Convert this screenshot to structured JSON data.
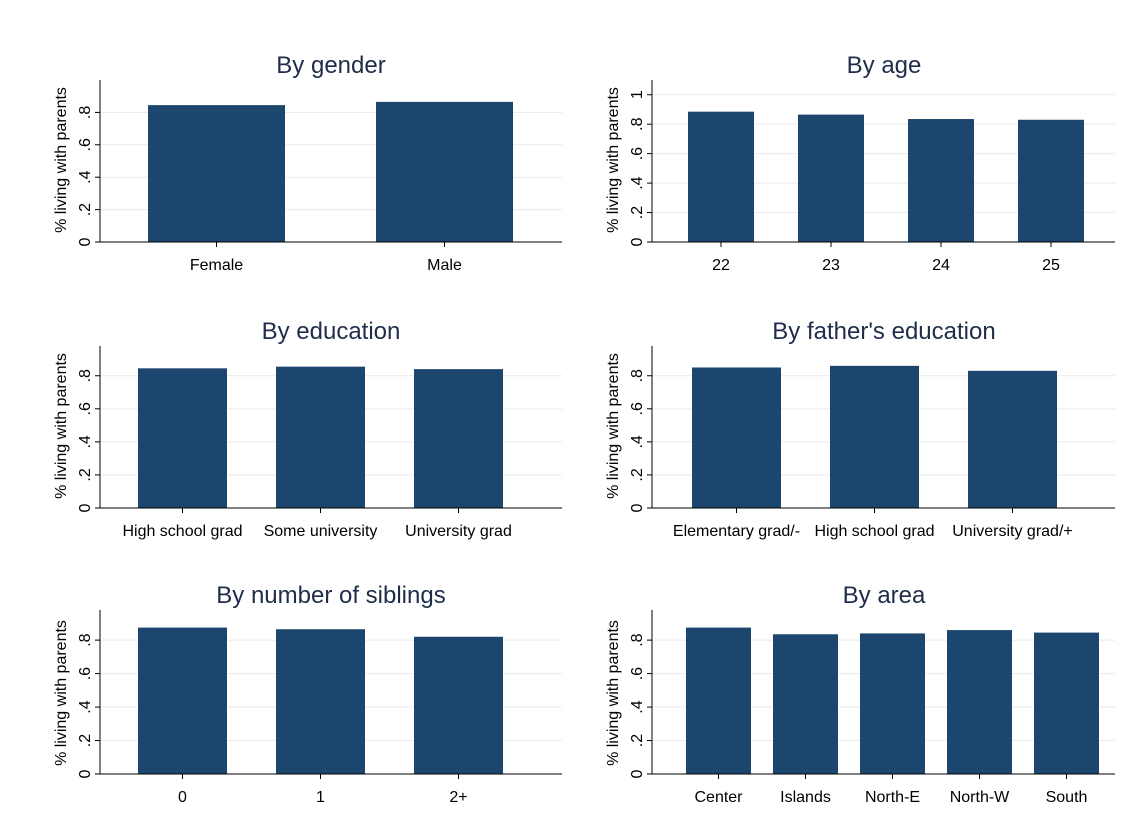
{
  "colors": {
    "bar": "#1c466d",
    "grid": "#eaeaea",
    "axis": "#000000",
    "title": "#1f2d4a"
  },
  "chart_data": [
    {
      "type": "bar",
      "title": "By gender",
      "ylabel": "% living with parents",
      "categories": [
        "Female",
        "Male"
      ],
      "values": [
        0.845,
        0.865
      ],
      "yticks": [
        0,
        0.2,
        0.4,
        0.6,
        0.8
      ],
      "ytick_labels": [
        "0",
        ".2",
        ".4",
        ".6",
        ".8"
      ],
      "ylim": [
        0,
        1.0
      ],
      "grid": true
    },
    {
      "type": "bar",
      "title": "By age",
      "ylabel": "% living with parents",
      "categories": [
        "22",
        "23",
        "24",
        "25"
      ],
      "values": [
        0.885,
        0.865,
        0.835,
        0.83
      ],
      "yticks": [
        0,
        0.2,
        0.4,
        0.6,
        0.8,
        1.0
      ],
      "ytick_labels": [
        "0",
        ".2",
        ".4",
        ".6",
        ".8",
        "1"
      ],
      "ylim": [
        0,
        1.1
      ],
      "grid": true
    },
    {
      "type": "bar",
      "title": "By education",
      "ylabel": "% living with parents",
      "categories": [
        "High school grad",
        "Some university",
        "University grad"
      ],
      "values": [
        0.845,
        0.855,
        0.84
      ],
      "yticks": [
        0,
        0.2,
        0.4,
        0.6,
        0.8
      ],
      "ytick_labels": [
        "0",
        ".2",
        ".4",
        ".6",
        ".8"
      ],
      "ylim": [
        0,
        0.98
      ],
      "grid": true
    },
    {
      "type": "bar",
      "title": "By father's education",
      "ylabel": "% living with parents",
      "categories": [
        "Elementary grad/-",
        "High school grad",
        "University grad/+"
      ],
      "values": [
        0.85,
        0.86,
        0.83
      ],
      "yticks": [
        0,
        0.2,
        0.4,
        0.6,
        0.8
      ],
      "ytick_labels": [
        "0",
        ".2",
        ".4",
        ".6",
        ".8"
      ],
      "ylim": [
        0,
        0.98
      ],
      "grid": true
    },
    {
      "type": "bar",
      "title": "By number of siblings",
      "ylabel": "% living with parents",
      "categories": [
        "0",
        "1",
        "2+"
      ],
      "values": [
        0.875,
        0.865,
        0.82
      ],
      "yticks": [
        0,
        0.2,
        0.4,
        0.6,
        0.8
      ],
      "ytick_labels": [
        "0",
        ".2",
        ".4",
        ".6",
        ".8"
      ],
      "ylim": [
        0,
        0.98
      ],
      "grid": true
    },
    {
      "type": "bar",
      "title": "By area",
      "ylabel": "% living with parents",
      "categories": [
        "Center",
        "Islands",
        "North-E",
        "North-W",
        "South"
      ],
      "values": [
        0.875,
        0.835,
        0.84,
        0.86,
        0.845
      ],
      "yticks": [
        0,
        0.2,
        0.4,
        0.6,
        0.8
      ],
      "ytick_labels": [
        "0",
        ".2",
        ".4",
        ".6",
        ".8"
      ],
      "ylim": [
        0,
        0.98
      ],
      "grid": true
    }
  ]
}
